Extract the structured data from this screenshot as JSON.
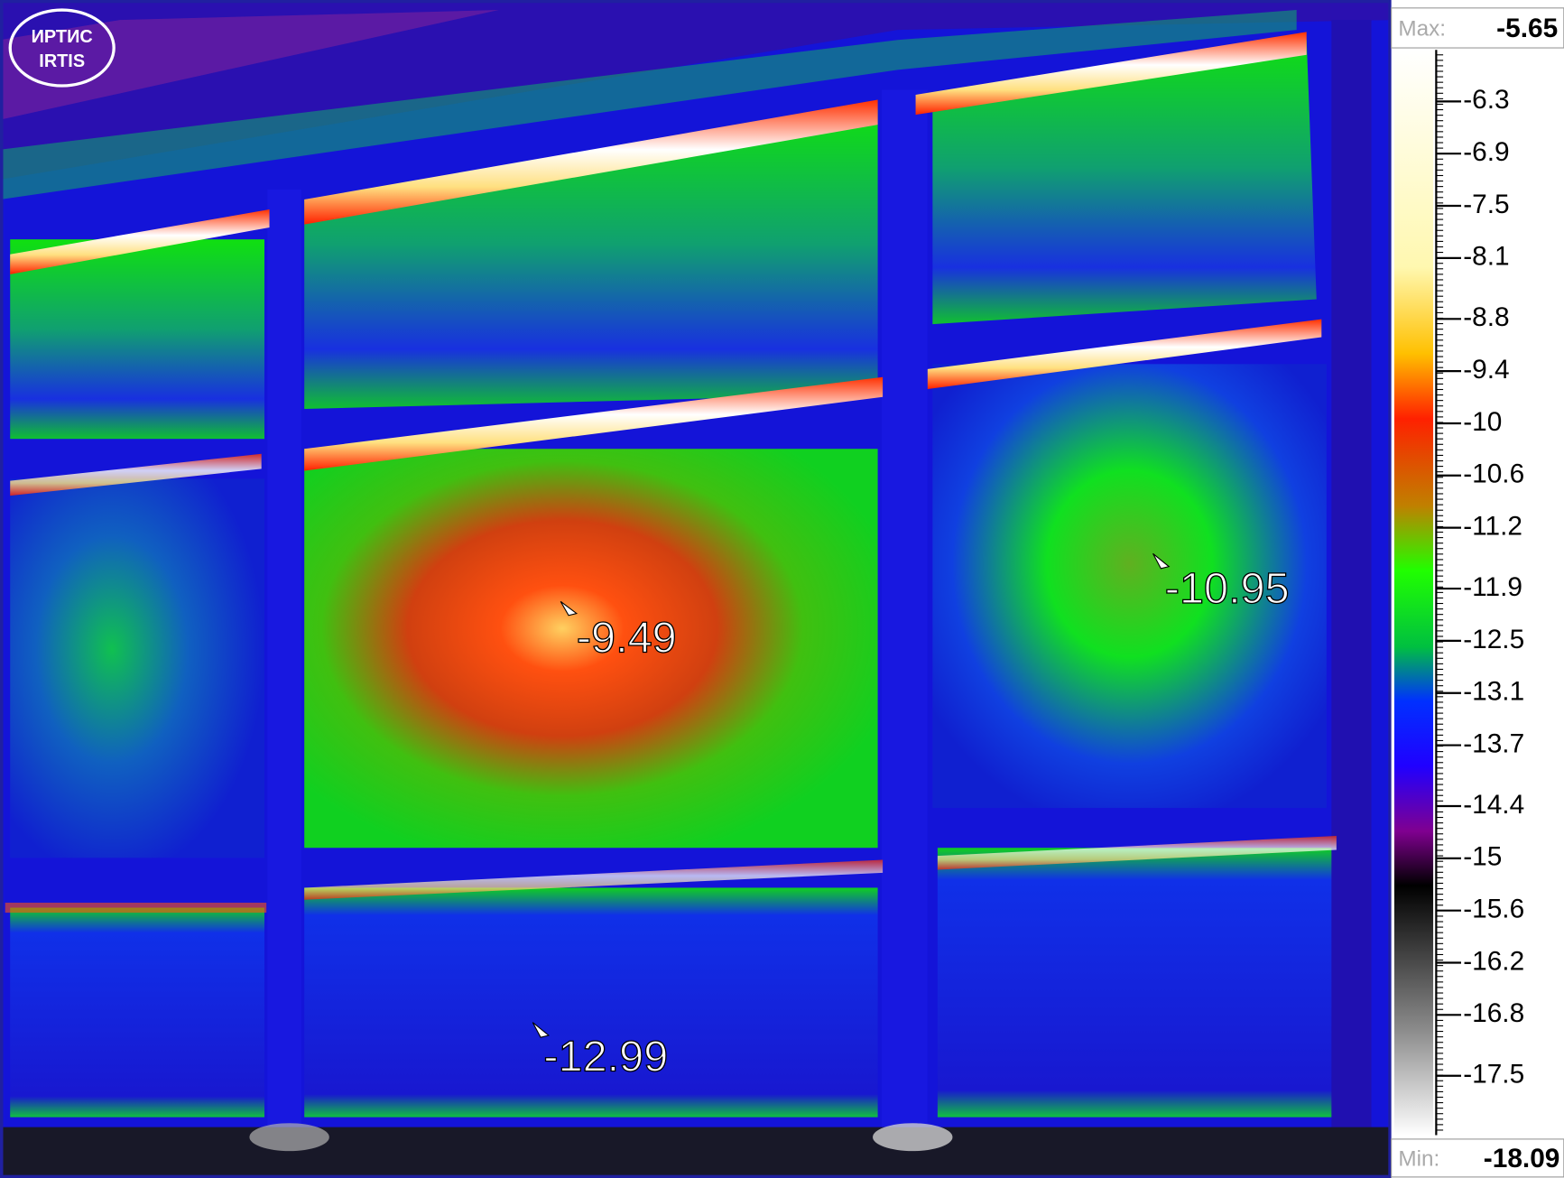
{
  "logo": {
    "top": "ИРТИС",
    "bottom": "IRTIS"
  },
  "scale": {
    "max_label": "Max:",
    "max": -5.65,
    "min_label": "Min:",
    "min": -18.09,
    "ticks": [
      -6.3,
      -6.9,
      -7.5,
      -8.1,
      -8.8,
      -9.4,
      -10,
      -10.6,
      -11.2,
      -11.9,
      -12.5,
      -13.1,
      -13.7,
      -14.4,
      -15,
      -15.6,
      -16.2,
      -16.8,
      -17.5
    ]
  },
  "spots": [
    -9.49,
    -10.95,
    -12.99
  ]
}
